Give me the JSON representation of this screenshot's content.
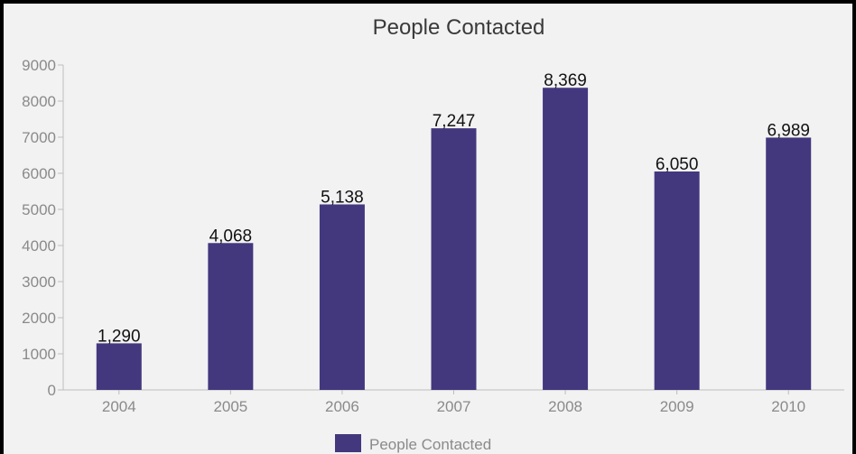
{
  "chart_data": {
    "type": "bar",
    "title": "People Contacted",
    "categories": [
      "2004",
      "2005",
      "2006",
      "2007",
      "2008",
      "2009",
      "2010"
    ],
    "series": [
      {
        "name": "People Contacted",
        "values": [
          1290,
          4068,
          5138,
          7247,
          8369,
          6050,
          6989
        ],
        "labels": [
          "1,290",
          "4,068",
          "5,138",
          "7,247",
          "8,369",
          "6,050",
          "6,989"
        ]
      }
    ],
    "ylim": [
      0,
      9000
    ],
    "yticks": [
      "0",
      "1000",
      "2000",
      "3000",
      "4000",
      "5000",
      "6000",
      "7000",
      "8000",
      "9000"
    ],
    "legend": "bottom-center",
    "grid": false,
    "bar_color": "#43387e"
  }
}
